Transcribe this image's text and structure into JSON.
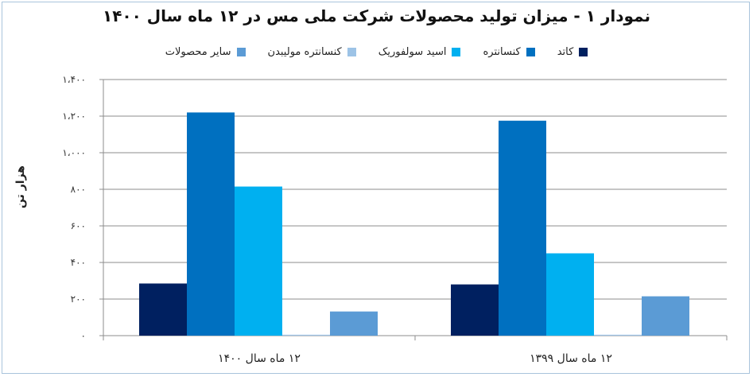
{
  "chart_data": {
    "type": "bar",
    "title": "نمودار ۱ - میزان تولید محصولات شرکت ملی مس در ۱۲ ماه سال ۱۴۰۰",
    "ylabel": "هزار تن",
    "xlabel": "",
    "ylim": [
      0,
      1400
    ],
    "yticks": [
      0,
      200,
      400,
      600,
      800,
      1000,
      1200,
      1400
    ],
    "ytick_labels": [
      "۰",
      "۲۰۰",
      "۴۰۰",
      "۶۰۰",
      "۸۰۰",
      "۱،۰۰۰",
      "۱،۲۰۰",
      "۱،۴۰۰"
    ],
    "categories": [
      "۱۲ ماه سال ۱۴۰۰",
      "۱۲ ماه سال ۱۳۹۹"
    ],
    "grid": true,
    "legend_position": "top",
    "series": [
      {
        "name": "کاتد",
        "color": "#002060",
        "values": [
          285,
          280
        ]
      },
      {
        "name": "کنسانتره",
        "color": "#0070c0",
        "values": [
          1220,
          1175
        ]
      },
      {
        "name": "اسید سولفوریک",
        "color": "#00b0f0",
        "values": [
          815,
          450
        ]
      },
      {
        "name": "کنسانتره مولیبدن",
        "color": "#9dc3e6",
        "values": [
          5,
          5
        ]
      },
      {
        "name": "سایر محصولات",
        "color": "#5b9bd5",
        "values": [
          132,
          215
        ]
      }
    ]
  }
}
